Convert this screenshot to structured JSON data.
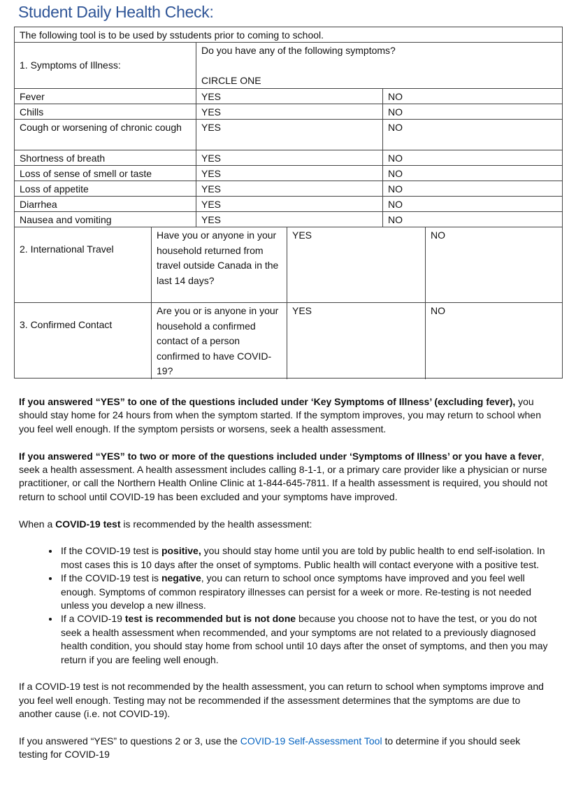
{
  "title": "Student Daily Health Check:",
  "table": {
    "intro": "The following tool is to be used by sstudents prior to coming to school.",
    "section1_label": "1. Symptoms of Illness:",
    "section1_question": "Do you have any of the following symptoms?",
    "section1_instruction": "CIRCLE ONE",
    "symptoms": [
      {
        "name": "Fever",
        "yes": "YES",
        "no": "NO"
      },
      {
        "name": "Chills",
        "yes": "YES",
        "no": "NO"
      },
      {
        "name": "Cough or worsening of chronic cough",
        "yes": "YES",
        "no": "NO"
      },
      {
        "name": "Shortness of breath",
        "yes": "YES",
        "no": "NO"
      },
      {
        "name": "Loss of sense of smell or taste",
        "yes": "YES",
        "no": "NO"
      },
      {
        "name": "Loss of appetite",
        "yes": "YES",
        "no": "NO"
      },
      {
        "name": "Diarrhea",
        "yes": "YES",
        "no": "NO"
      },
      {
        "name": "Nausea and vomiting",
        "yes": "YES",
        "no": "NO"
      }
    ],
    "sections": [
      {
        "label": "2. International Travel",
        "question": "Have you or anyone in your household returned from travel outside Canada in the last 14 days?",
        "yes": "YES",
        "no": "NO"
      },
      {
        "label": "3. Confirmed Contact",
        "question": "Are you or is anyone in your household a confirmed contact of a person confirmed to have COVID-19?",
        "yes": "YES",
        "no": "NO"
      }
    ]
  },
  "body": {
    "p1": [
      {
        "b": true,
        "t": "If you answered “YES” to one of the questions included under ‘Key Symptoms of Illness’ (excluding fever),"
      },
      {
        "b": false,
        "t": " you should stay home for 24 hours from when the symptom started. If the symptom improves, you may return to school when you feel well enough. If the symptom persists or worsens, seek a health assessment."
      }
    ],
    "p2": [
      {
        "b": true,
        "t": "If you answered “YES” to two or more of the questions included under ‘Symptoms of Illness’ or you have a fever"
      },
      {
        "b": false,
        "t": ", seek a health assessment. A health assessment includes calling 8-1-1, or a primary care provider like a physician or nurse practitioner, or call the Northern Health Online Clinic at 1-844-645-7811. If a health assessment is required, you should not return to school until COVID-19 has been excluded and your symptoms have improved."
      }
    ],
    "p3": [
      {
        "b": false,
        "t": "When a "
      },
      {
        "b": true,
        "t": "COVID-19 test"
      },
      {
        "b": false,
        "t": " is recommended by the health assessment:"
      }
    ],
    "bullets": [
      [
        {
          "b": false,
          "t": "If the COVID-19 test is "
        },
        {
          "b": true,
          "t": "positive,"
        },
        {
          "b": false,
          "t": " you should stay home until you are told by public health to end self-isolation. In most cases this is 10 days after the onset of symptoms. Public health will contact everyone with a positive test."
        }
      ],
      [
        {
          "b": false,
          "t": "If the COVID-19 test is "
        },
        {
          "b": true,
          "t": "negative"
        },
        {
          "b": false,
          "t": ", you can return to school once symptoms have improved and you feel well enough. Symptoms of common respiratory illnesses can persist for a week or more. Re-testing is not needed unless you develop a new illness."
        }
      ],
      [
        {
          "b": false,
          "t": "If a COVID-19 "
        },
        {
          "b": true,
          "t": "test is recommended but is not done"
        },
        {
          "b": false,
          "t": " because you choose not to have the test, or you do not seek a health assessment when recommended, and your symptoms are not related to a previously diagnosed health condition, you should stay home from school until 10 days after the onset of symptoms, and then you may return if you are feeling well enough."
        }
      ]
    ],
    "p4": [
      {
        "b": false,
        "t": "If a COVID-19 test is not recommended by the health assessment, you can return to school when symptoms improve and you feel well enough. Testing may not be recommended if the assessment determines that the symptoms are due to another cause (i.e. not COVID-19)."
      }
    ],
    "p5_before": "If you answered “YES” to questions 2 or 3, use the ",
    "p5_link": "COVID-19 Self-Assessment Tool",
    "p5_after": " to determine if you should seek testing for COVID-19"
  },
  "colors": {
    "title": "#2f5597",
    "link": "#0563c1"
  }
}
